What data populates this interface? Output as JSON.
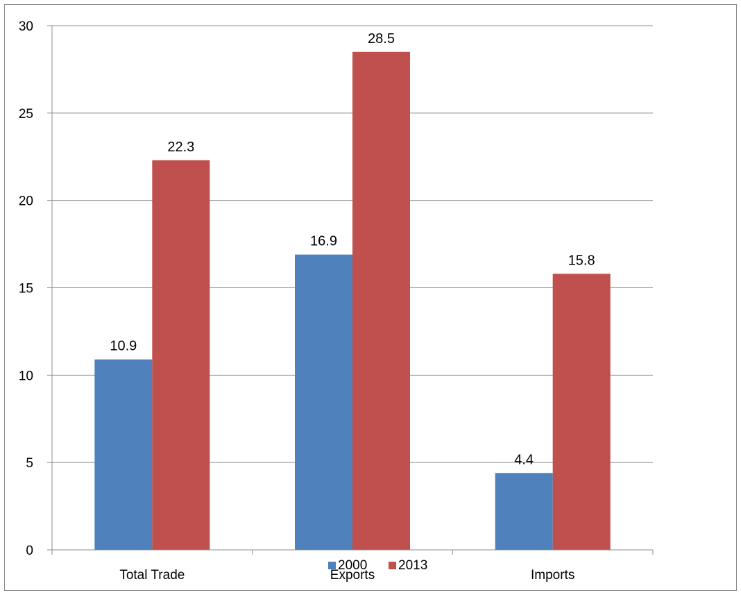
{
  "chart_data": {
    "type": "bar",
    "title": "",
    "xlabel": "",
    "ylabel": "",
    "categories": [
      "Total Trade",
      "Exports",
      "Imports"
    ],
    "series": [
      {
        "name": "2000",
        "values": [
          10.9,
          16.9,
          4.4
        ],
        "color": "#4f81bd"
      },
      {
        "name": "2013",
        "values": [
          22.3,
          28.5,
          15.8
        ],
        "color": "#c0504d"
      }
    ],
    "ylim": [
      0,
      30
    ],
    "yticks": [
      0,
      5,
      10,
      15,
      20,
      25,
      30
    ],
    "grid": true,
    "data_labels": true,
    "legend": "bottom-center",
    "gridline_color": "#8c8c8c",
    "axis_color": "#8c8c8c"
  }
}
